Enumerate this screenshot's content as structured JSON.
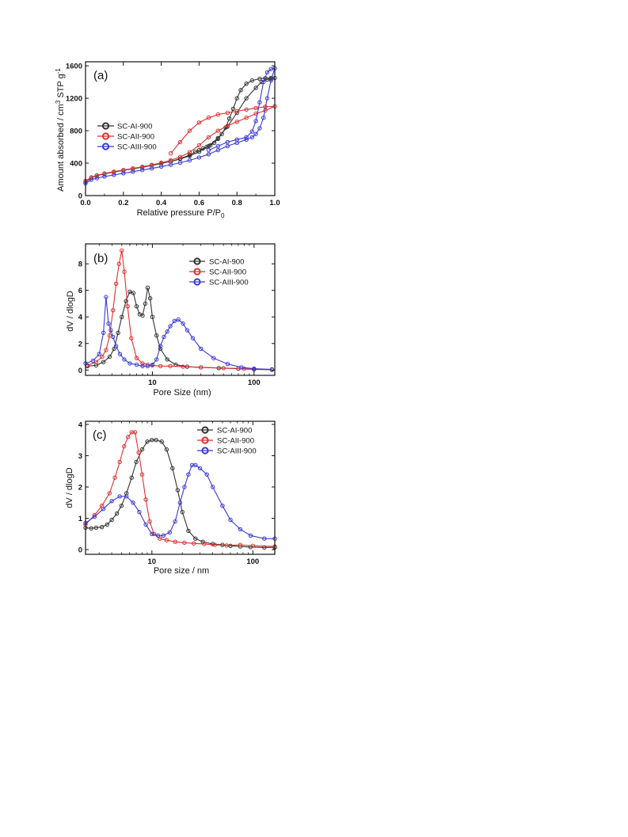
{
  "figure": {
    "colors": {
      "SC-AI-900": "#333333",
      "SC-AII-900": "#e03030",
      "SC-AIII-900": "#3a3ad6"
    }
  },
  "chart_data": [
    {
      "id": "a",
      "type": "line",
      "panel_label": "(a)",
      "xlabel": "Relative pressure P/P",
      "xlabel_sub": "0",
      "ylabel": "Amount absorbed / cm",
      "ylabel_sup": "3",
      "ylabel_mid": " STP g",
      "ylabel_sup2": "-1",
      "xscale": "linear",
      "xlim": [
        0,
        1
      ],
      "ylim": [
        0,
        1650
      ],
      "xticks": [
        0,
        0.2,
        0.4,
        0.6,
        0.8,
        1.0
      ],
      "xtick_labels": [
        "0.0",
        "0.2",
        "0.4",
        "0.6",
        "0.8",
        "1.0"
      ],
      "yticks": [
        0,
        400,
        800,
        1200,
        1600
      ],
      "ytick_labels": [
        "0",
        "400",
        "800",
        "1200",
        "1600"
      ],
      "legend_position": "middle-left",
      "series": [
        {
          "name": "SC-AI-900",
          "color": "#333333",
          "x": [
            0.0,
            0.03,
            0.06,
            0.1,
            0.15,
            0.2,
            0.25,
            0.3,
            0.35,
            0.4,
            0.45,
            0.5,
            0.55,
            0.6,
            0.65,
            0.7,
            0.75,
            0.8,
            0.85,
            0.9,
            0.93,
            0.96,
            0.98,
            1.0,
            0.98,
            0.95,
            0.92,
            0.88,
            0.85,
            0.82,
            0.8,
            0.78,
            0.76,
            0.74,
            0.72,
            0.7,
            0.68,
            0.66,
            0.64,
            0.62,
            0.6,
            0.58,
            0.55,
            0.5,
            0.45
          ],
          "y": [
            170,
            220,
            245,
            268,
            290,
            310,
            330,
            350,
            372,
            395,
            420,
            450,
            490,
            540,
            610,
            710,
            850,
            1020,
            1200,
            1330,
            1400,
            1430,
            1440,
            1450,
            1450,
            1448,
            1440,
            1420,
            1380,
            1300,
            1200,
            1070,
            950,
            840,
            760,
            700,
            650,
            620,
            600,
            580,
            560,
            540,
            500,
            455,
            420
          ]
        },
        {
          "name": "SC-AII-900",
          "color": "#e03030",
          "x": [
            0.0,
            0.03,
            0.06,
            0.1,
            0.15,
            0.2,
            0.25,
            0.3,
            0.35,
            0.4,
            0.45,
            0.5,
            0.55,
            0.6,
            0.65,
            0.7,
            0.75,
            0.8,
            0.85,
            0.9,
            0.95,
            1.0,
            0.95,
            0.9,
            0.85,
            0.8,
            0.75,
            0.7,
            0.65,
            0.6,
            0.55,
            0.5,
            0.45
          ],
          "y": [
            180,
            225,
            250,
            272,
            295,
            315,
            335,
            355,
            378,
            405,
            435,
            475,
            535,
            620,
            720,
            800,
            860,
            910,
            960,
            1010,
            1050,
            1100,
            1095,
            1080,
            1060,
            1040,
            1020,
            1000,
            960,
            900,
            800,
            660,
            520
          ]
        },
        {
          "name": "SC-AIII-900",
          "color": "#3a3ad6",
          "x": [
            0.0,
            0.03,
            0.06,
            0.1,
            0.15,
            0.2,
            0.25,
            0.3,
            0.35,
            0.4,
            0.45,
            0.5,
            0.55,
            0.6,
            0.65,
            0.7,
            0.75,
            0.8,
            0.85,
            0.88,
            0.9,
            0.92,
            0.94,
            0.96,
            0.98,
            1.0,
            0.98,
            0.96,
            0.94,
            0.92,
            0.9,
            0.88,
            0.85,
            0.8,
            0.75,
            0.7,
            0.65
          ],
          "y": [
            150,
            195,
            215,
            235,
            255,
            275,
            295,
            315,
            335,
            357,
            380,
            405,
            435,
            470,
            510,
            560,
            610,
            650,
            690,
            720,
            760,
            830,
            960,
            1200,
            1420,
            1570,
            1560,
            1520,
            1400,
            1150,
            920,
            790,
            720,
            690,
            660,
            610,
            560
          ]
        }
      ]
    },
    {
      "id": "b",
      "type": "line",
      "panel_label": "(b)",
      "xlabel": "Pore Size (nm)",
      "ylabel": "dV / dlogD",
      "xscale": "log",
      "xlim": [
        2.2,
        160
      ],
      "ylim": [
        -0.4,
        9.5
      ],
      "xticks": [
        10,
        100
      ],
      "xtick_labels": [
        "10",
        "100"
      ],
      "yticks": [
        0,
        2,
        4,
        6,
        8
      ],
      "ytick_labels": [
        "0",
        "2",
        "4",
        "6",
        "8"
      ],
      "legend_position": "top-right",
      "series": [
        {
          "name": "SC-AI-900",
          "color": "#333333",
          "x": [
            2.3,
            2.8,
            3.3,
            3.8,
            4.2,
            4.6,
            5.0,
            5.5,
            6.0,
            6.5,
            7.0,
            7.5,
            8.0,
            8.5,
            9.0,
            9.5,
            10.0,
            11,
            12,
            14,
            17,
            22,
            30,
            45,
            70,
            100,
            150
          ],
          "y": [
            0.3,
            0.35,
            0.6,
            1.0,
            1.6,
            2.8,
            4.0,
            5.2,
            5.9,
            5.8,
            4.8,
            4.2,
            4.1,
            5.0,
            6.2,
            5.4,
            4.0,
            2.6,
            1.6,
            0.8,
            0.4,
            0.25,
            0.2,
            0.15,
            0.1,
            0.05,
            0.02
          ]
        },
        {
          "name": "SC-AII-900",
          "color": "#e03030",
          "x": [
            2.3,
            2.8,
            3.2,
            3.5,
            3.8,
            4.1,
            4.4,
            4.7,
            5.0,
            5.3,
            5.7,
            6.2,
            7.0,
            8.0,
            9.0,
            10,
            12,
            15,
            20,
            30,
            50,
            80,
            150
          ],
          "y": [
            0.35,
            0.6,
            1.0,
            1.5,
            2.6,
            4.5,
            6.5,
            8.0,
            9.0,
            7.4,
            4.8,
            2.4,
            0.9,
            0.5,
            0.4,
            0.35,
            0.3,
            0.3,
            0.25,
            0.2,
            0.15,
            0.1,
            0.05
          ]
        },
        {
          "name": "SC-AIII-900",
          "color": "#3a3ad6",
          "x": [
            2.2,
            2.6,
            3.0,
            3.3,
            3.5,
            3.7,
            3.9,
            4.1,
            4.4,
            4.8,
            5.3,
            6.0,
            7.0,
            8.0,
            9.0,
            10,
            11,
            12,
            13,
            14,
            15,
            16.5,
            18,
            20,
            22,
            25,
            30,
            40,
            55,
            75,
            100,
            150
          ],
          "y": [
            0.5,
            0.7,
            1.2,
            2.8,
            5.5,
            3.5,
            3.0,
            2.5,
            1.8,
            1.2,
            0.8,
            0.5,
            0.4,
            0.3,
            0.3,
            0.4,
            0.8,
            1.8,
            2.5,
            2.9,
            3.3,
            3.7,
            3.8,
            3.5,
            3.0,
            2.4,
            1.6,
            0.9,
            0.45,
            0.2,
            0.1,
            0.05
          ]
        }
      ]
    },
    {
      "id": "c",
      "type": "line",
      "panel_label": "(c)",
      "xlabel": "Pore size / nm",
      "ylabel": "dV / dlogD",
      "xscale": "log",
      "xlim": [
        2.2,
        165
      ],
      "ylim": [
        -0.15,
        4.1
      ],
      "xticks": [
        10,
        100
      ],
      "xtick_labels": [
        "10",
        "100"
      ],
      "yticks": [
        0,
        1,
        2,
        3,
        4
      ],
      "ytick_labels": [
        "0",
        "1",
        "2",
        "3",
        "4"
      ],
      "legend_position": "top-right",
      "series": [
        {
          "name": "SC-AI-900",
          "color": "#333333",
          "x": [
            2.2,
            2.5,
            2.8,
            3.2,
            3.6,
            4.0,
            4.5,
            5.0,
            5.6,
            6.3,
            7.0,
            8.0,
            9.0,
            10,
            11,
            12.5,
            14,
            16,
            18,
            20,
            23,
            27,
            32,
            40,
            50,
            60,
            75,
            95,
            130,
            165
          ],
          "y": [
            0.7,
            0.68,
            0.7,
            0.72,
            0.8,
            0.95,
            1.15,
            1.4,
            1.8,
            2.3,
            2.8,
            3.2,
            3.45,
            3.5,
            3.5,
            3.45,
            3.2,
            2.6,
            1.9,
            1.2,
            0.6,
            0.35,
            0.25,
            0.18,
            0.15,
            0.12,
            0.1,
            0.08,
            0.07,
            0.07
          ]
        },
        {
          "name": "SC-AII-900",
          "color": "#e03030",
          "x": [
            2.2,
            2.7,
            3.2,
            3.8,
            4.3,
            4.8,
            5.3,
            5.8,
            6.3,
            6.8,
            7.4,
            8.0,
            8.7,
            9.5,
            10.5,
            12,
            14,
            17,
            21,
            26,
            33,
            42,
            55,
            75,
            100,
            165
          ],
          "y": [
            0.8,
            1.1,
            1.4,
            1.8,
            2.3,
            2.8,
            3.3,
            3.6,
            3.75,
            3.75,
            3.1,
            2.4,
            1.6,
            0.9,
            0.5,
            0.35,
            0.3,
            0.25,
            0.22,
            0.2,
            0.18,
            0.15,
            0.13,
            0.15,
            0.12,
            0.1
          ]
        },
        {
          "name": "SC-AIII-900",
          "color": "#3a3ad6",
          "x": [
            2.2,
            2.7,
            3.3,
            4.0,
            4.8,
            5.6,
            6.5,
            7.5,
            8.7,
            10,
            11.5,
            13,
            15,
            17,
            19,
            21,
            23,
            25,
            27,
            30,
            35,
            40,
            50,
            60,
            75,
            95,
            130,
            165
          ],
          "y": [
            0.85,
            1.05,
            1.3,
            1.55,
            1.7,
            1.7,
            1.5,
            1.2,
            0.8,
            0.5,
            0.45,
            0.45,
            0.55,
            0.9,
            1.5,
            2.0,
            2.4,
            2.7,
            2.7,
            2.6,
            2.4,
            2.0,
            1.4,
            0.95,
            0.65,
            0.45,
            0.35,
            0.35
          ]
        }
      ]
    }
  ]
}
